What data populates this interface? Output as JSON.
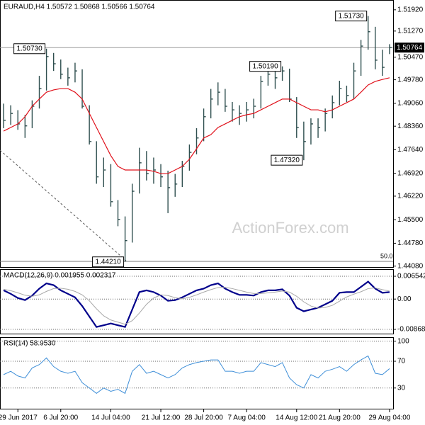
{
  "chart_data": [
    {
      "type": "ohlc",
      "title": "EURAUD,H4  1.50572 1.50868 1.50566 1.50764",
      "watermark": "ActionForex.com",
      "fib_label": "50.0",
      "color": "#2f4f4f",
      "categories": [
        null,
        null,
        "29 Jun 2017",
        null,
        null,
        null,
        null,
        null,
        "6 Jul 20:00",
        null,
        null,
        null,
        null,
        null,
        null,
        "14 Jul 04:00",
        null,
        null,
        null,
        null,
        null,
        null,
        "21 Jul 12:00",
        null,
        null,
        null,
        null,
        null,
        "28 Jul 20:00",
        null,
        null,
        null,
        null,
        null,
        "7 Aug 04:00",
        null,
        null,
        null,
        null,
        null,
        null,
        "14 Aug 12:00",
        null,
        null,
        null,
        null,
        null,
        "21 Aug 20:00",
        null,
        null,
        null,
        null,
        null,
        null,
        "29 Aug 04:00"
      ],
      "high": [
        1.4905,
        1.49,
        1.4885,
        1.487,
        1.4915,
        1.499,
        1.5073,
        1.506,
        1.504,
        1.5015,
        1.503,
        1.501,
        1.49,
        1.479,
        1.474,
        1.472,
        1.461,
        1.456,
        1.466,
        1.477,
        1.476,
        1.474,
        1.472,
        1.47,
        1.469,
        1.473,
        1.478,
        1.483,
        1.489,
        1.495,
        1.497,
        1.495,
        1.491,
        1.49,
        1.491,
        1.492,
        1.499,
        1.5015,
        1.501,
        1.5019,
        1.5012,
        1.4925,
        1.485,
        1.486,
        1.486,
        1.489,
        1.493,
        1.4975,
        1.496,
        1.503,
        1.51,
        1.5173,
        1.514,
        1.507,
        1.50868
      ],
      "low": [
        1.483,
        1.484,
        1.4825,
        1.48,
        1.483,
        1.489,
        1.4945,
        1.5005,
        1.498,
        1.496,
        1.497,
        1.489,
        1.478,
        1.466,
        1.465,
        1.459,
        1.453,
        1.4421,
        1.448,
        1.463,
        1.467,
        1.466,
        1.465,
        1.457,
        1.462,
        1.465,
        1.47,
        1.475,
        1.479,
        1.486,
        1.49,
        1.488,
        1.485,
        1.484,
        1.485,
        1.486,
        1.489,
        1.496,
        1.495,
        1.4975,
        1.491,
        1.48,
        1.4732,
        1.478,
        1.48,
        1.482,
        1.486,
        1.49,
        1.491,
        1.492,
        1.499,
        1.507,
        1.501,
        1.499,
        1.50566
      ],
      "close": [
        1.4854,
        1.4875,
        1.4843,
        1.4837,
        1.4897,
        1.4951,
        1.5049,
        1.5027,
        1.4995,
        1.4984,
        1.5005,
        1.4897,
        1.4789,
        1.4681,
        1.4702,
        1.4605,
        1.4551,
        1.4486,
        1.4637,
        1.4724,
        1.4691,
        1.4702,
        1.4681,
        1.4648,
        1.4659,
        1.4713,
        1.4756,
        1.48,
        1.4865,
        1.4919,
        1.494,
        1.4897,
        1.4886,
        1.4875,
        1.4886,
        1.4897,
        1.4973,
        1.4995,
        1.4984,
        1.5005,
        1.4919,
        1.4832,
        1.4789,
        1.4843,
        1.4832,
        1.4875,
        1.4908,
        1.4951,
        1.493,
        1.5005,
        1.5081,
        1.5125,
        1.5038,
        1.5016,
        1.50764
      ],
      "overlay": {
        "color": "#e0101a",
        "values": [
          1.4821,
          1.4832,
          1.4843,
          1.4865,
          1.4897,
          1.4919,
          1.494,
          1.4947,
          1.4951,
          1.4951,
          1.494,
          1.4919,
          1.4875,
          1.4832,
          1.4789,
          1.4746,
          1.4713,
          1.4702,
          1.4702,
          1.4702,
          1.4702,
          1.4698,
          1.4691,
          1.4691,
          1.4702,
          1.4713,
          1.4735,
          1.4767,
          1.48,
          1.481,
          1.4832,
          1.4843,
          1.4854,
          1.4865,
          1.4871,
          1.4875,
          1.4886,
          1.4897,
          1.4908,
          1.4919,
          1.4919,
          1.4908,
          1.4897,
          1.4886,
          1.4886,
          1.488,
          1.4886,
          1.4897,
          1.4908,
          1.4919,
          1.494,
          1.4962,
          1.4973,
          1.4979,
          1.4984
        ]
      },
      "annotations": [
        {
          "value": 1.5073,
          "label": "1.50730",
          "bar": 6
        },
        {
          "value": 1.4421,
          "label": "1.44210",
          "bar": 17
        },
        {
          "value": 1.5019,
          "label": "1.50190",
          "bar": 39
        },
        {
          "value": 1.4732,
          "label": "1.47320",
          "bar": 42
        },
        {
          "value": 1.5173,
          "label": "1.51730",
          "bar": 51
        }
      ],
      "last": {
        "value": 1.50764,
        "label": "1.50764"
      },
      "ylim": [
        1.4403,
        1.5222
      ],
      "yticks": [
        {
          "value": 1.5192,
          "label": "1.51920"
        },
        {
          "value": 1.5127,
          "label": "1.51270"
        },
        {
          "value": 1.5047,
          "label": "1.50470"
        },
        {
          "value": 1.4978,
          "label": "1.49780"
        },
        {
          "value": 1.4906,
          "label": "1.49060"
        },
        {
          "value": 1.4836,
          "label": "1.48360"
        },
        {
          "value": 1.4764,
          "label": "1.47640"
        },
        {
          "value": 1.4692,
          "label": "1.46920"
        },
        {
          "value": 1.4622,
          "label": "1.46220"
        },
        {
          "value": 1.455,
          "label": "1.45500"
        },
        {
          "value": 1.4478,
          "label": "1.44780"
        },
        {
          "value": 1.4408,
          "label": "1.44080"
        }
      ]
    },
    {
      "type": "line",
      "title": "MACD(12,26,9) 0.001955 0.002317",
      "series": [
        {
          "color": "#00008b",
          "values": [
            0.0025,
            0.0015,
            0.0003,
            -0.0003,
            0.001,
            0.003,
            0.0045,
            0.004,
            0.0025,
            0.0015,
            0.0005,
            -0.002,
            -0.005,
            -0.008,
            -0.0075,
            -0.007,
            -0.0075,
            -0.008,
            -0.003,
            0.002,
            0.0025,
            0.002,
            0.001,
            -0.0005,
            -0.0003,
            0.0005,
            0.0015,
            0.0025,
            0.003,
            0.004,
            0.0045,
            0.003,
            0.002,
            0.0012,
            0.0012,
            0.001,
            0.002,
            0.0025,
            0.0025,
            0.0028,
            0.001,
            -0.0025,
            -0.0035,
            -0.003,
            -0.0025,
            -0.0015,
            -0.0005,
            0.0018,
            0.002,
            0.002,
            0.0035,
            0.005,
            0.003,
            0.0018,
            0.002
          ]
        },
        {
          "color": "#a8a8a8",
          "values": [
            0.0028,
            0.0024,
            0.0018,
            0.0011,
            0.0008,
            0.0012,
            0.0022,
            0.003,
            0.0031,
            0.0028,
            0.0022,
            0.0012,
            -0.0005,
            -0.0028,
            -0.0048,
            -0.006,
            -0.0066,
            -0.0072,
            -0.0062,
            -0.004,
            -0.0015,
            0.0003,
            0.0012,
            0.001,
            0.0004,
            0.0001,
            0.0005,
            0.0012,
            0.002,
            0.0027,
            0.0033,
            0.0034,
            0.003,
            0.0025,
            0.002,
            0.0016,
            0.0016,
            0.0018,
            0.002,
            0.0023,
            0.002,
            0.0008,
            -0.0008,
            -0.002,
            -0.0026,
            -0.0024,
            -0.0018,
            -0.0006,
            0.0006,
            0.0014,
            0.0021,
            0.003,
            0.0032,
            0.0027,
            0.0023
          ]
        }
      ],
      "ylim": [
        -0.01011,
        0.00857
      ],
      "yticks": [
        0.006542,
        {
          "value": 0,
          "label": "0.00"
        },
        -0.008684
      ]
    },
    {
      "type": "line",
      "title": "RSI(14) 58.9530",
      "series": [
        {
          "color": "#3f8fd8",
          "values": [
            50,
            55,
            48,
            45,
            60,
            65,
            75,
            62,
            55,
            52,
            55,
            38,
            30,
            22,
            30,
            25,
            28,
            22,
            55,
            65,
            52,
            55,
            50,
            45,
            50,
            60,
            65,
            68,
            70,
            72,
            72,
            55,
            55,
            52,
            55,
            55,
            68,
            65,
            62,
            68,
            45,
            35,
            30,
            50,
            45,
            55,
            58,
            62,
            55,
            65,
            72,
            78,
            52,
            50,
            58.953
          ]
        }
      ],
      "ylim": [
        -2,
        106
      ],
      "yticks": [
        100,
        70,
        30
      ]
    }
  ]
}
